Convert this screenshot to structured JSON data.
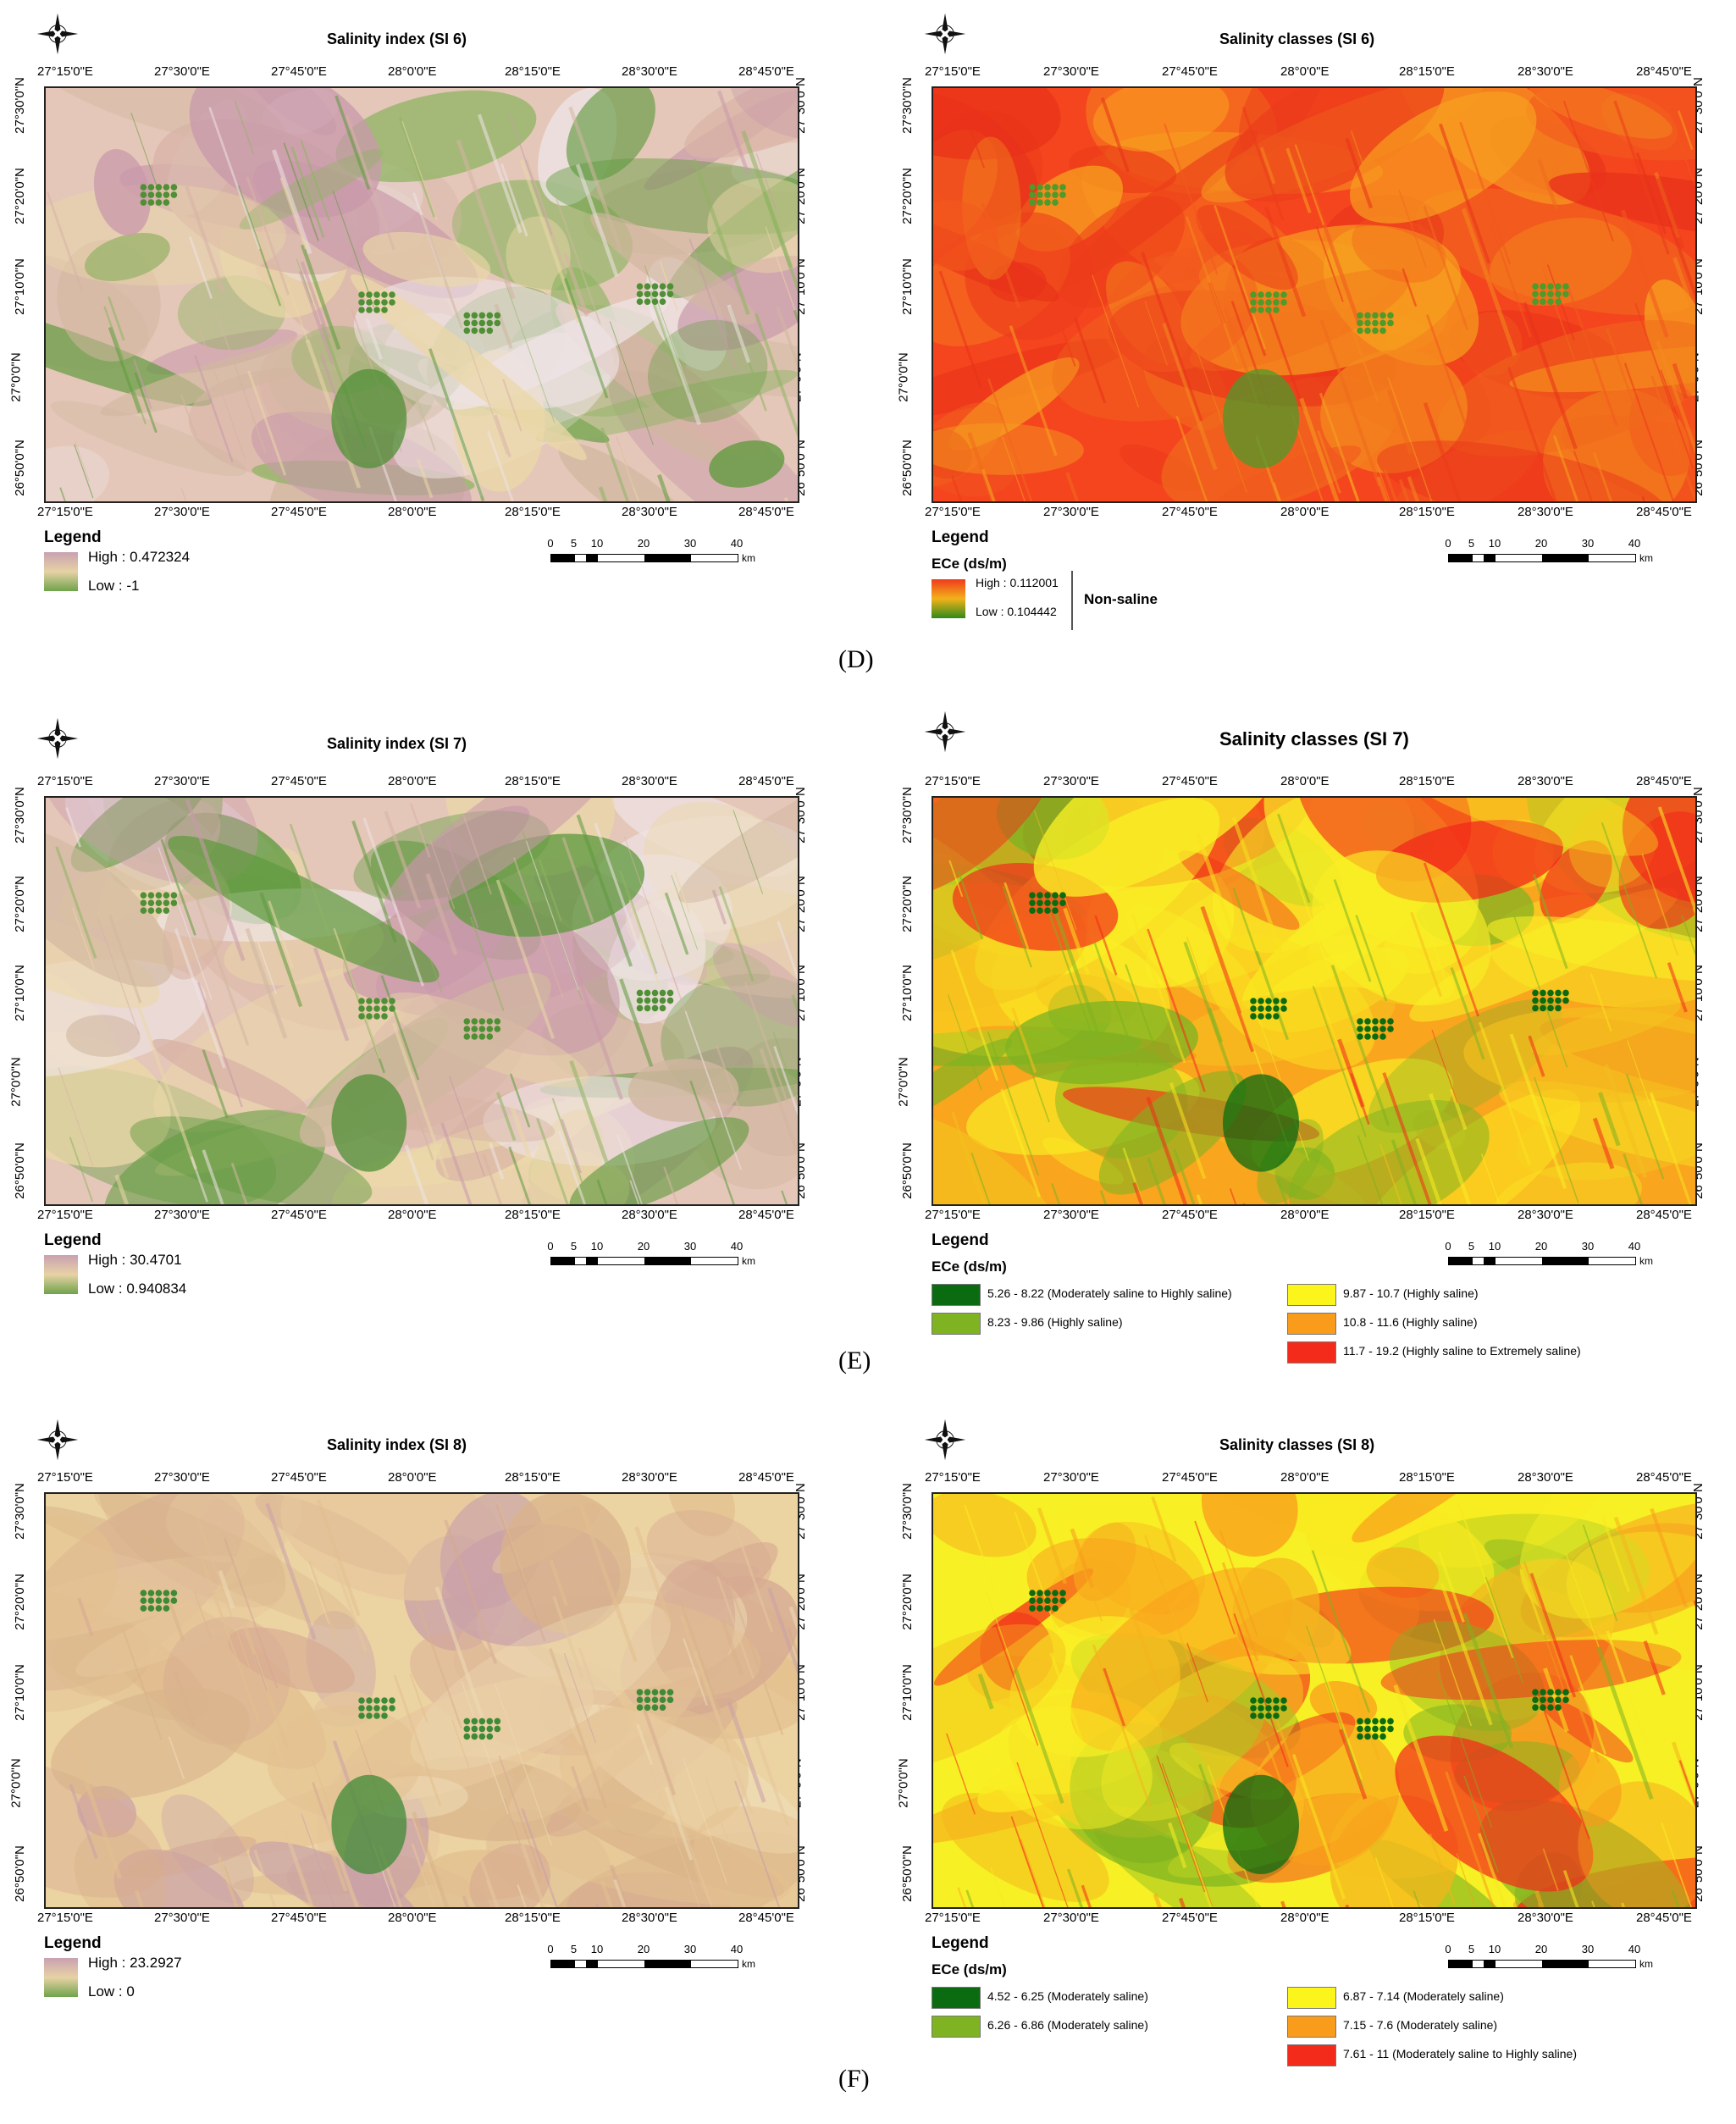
{
  "panels": [
    {
      "id": "d-left",
      "title": "Salinity index (SI 6)",
      "top_ticks": [
        "27°15'0\"E",
        "27°30'0\"E",
        "27°45'0\"E",
        "28°0'0\"E",
        "28°15'0\"E",
        "28°30'0\"E",
        "28°45'0\"E"
      ],
      "bottom_ticks": [
        "27°15'0\"E",
        "27°30'0\"E",
        "27°45'0\"E",
        "28°0'0\"E",
        "28°15'0\"E",
        "28°30'0\"E",
        "28°45'0\"E"
      ],
      "left_ticks": [
        "27°30'0\"N",
        "27°20'0\"N",
        "27°10'0\"N",
        "27°0'0\"N",
        "26°50'0\"N"
      ],
      "right_ticks": [
        "27°30'0\"N",
        "27°20'0\"N",
        "27°10'0\"N",
        "27°0'0\"N",
        "26°50'0\"N"
      ],
      "legend_title": "Legend",
      "high": "High : 0.472324",
      "low": "Low : -1",
      "scale_numbers": [
        "0",
        "5",
        "10",
        "20",
        "30",
        "40"
      ],
      "scale_unit": "km",
      "ramp_colors": [
        "#c9a1b1",
        "#e7d2a5",
        "#6fa34a"
      ],
      "map_palette": "index-pink"
    },
    {
      "id": "d-right",
      "title": "Salinity classes (SI 6)",
      "top_ticks": [
        "27°15'0\"E",
        "27°30'0\"E",
        "27°45'0\"E",
        "28°0'0\"E",
        "28°15'0\"E",
        "28°30'0\"E",
        "28°45'0\"E"
      ],
      "bottom_ticks": [
        "27°15'0\"E",
        "27°30'0\"E",
        "27°45'0\"E",
        "28°0'0\"E",
        "28°15'0\"E",
        "28°30'0\"E",
        "28°45'0\"E"
      ],
      "left_ticks": [
        "27°30'0\"N",
        "27°20'0\"N",
        "27°10'0\"N",
        "27°0'0\"N",
        "26°50'0\"N"
      ],
      "right_ticks": [
        "27°30'0\"N",
        "27°20'0\"N",
        "27°10'0\"N",
        "27°0'0\"N",
        "26°50'0\"N"
      ],
      "legend_title": "Legend",
      "legend_sub": "ECe (ds/m)",
      "high": "High : 0.112001",
      "low": "Low : 0.104442",
      "class_note": "Non-saline",
      "scale_numbers": [
        "0",
        "5",
        "10",
        "20",
        "30",
        "40"
      ],
      "scale_unit": "km",
      "ramp_colors": [
        "#f03a1c",
        "#f2b21a",
        "#2f8a1a"
      ],
      "map_palette": "class-red"
    },
    {
      "id": "e-left",
      "title": "Salinity index (SI 7)",
      "top_ticks": [
        "27°15'0\"E",
        "27°30'0\"E",
        "27°45'0\"E",
        "28°0'0\"E",
        "28°15'0\"E",
        "28°30'0\"E",
        "28°45'0\"E"
      ],
      "bottom_ticks": [
        "27°15'0\"E",
        "27°30'0\"E",
        "27°45'0\"E",
        "28°0'0\"E",
        "28°15'0\"E",
        "28°30'0\"E",
        "28°45'0\"E"
      ],
      "left_ticks": [
        "27°30'0\"N",
        "27°20'0\"N",
        "27°10'0\"N",
        "27°0'0\"N",
        "26°50'0\"N"
      ],
      "right_ticks": [
        "27°30'0\"N",
        "27°20'0\"N",
        "27°10'0\"N",
        "27°0'0\"N",
        "26°50'0\"N"
      ],
      "legend_title": "Legend",
      "high": "High : 30.4701",
      "low": "Low : 0.940834",
      "scale_numbers": [
        "0",
        "5",
        "10",
        "20",
        "30",
        "40"
      ],
      "scale_unit": "km",
      "ramp_colors": [
        "#c9a1b1",
        "#e7d2a5",
        "#6fa34a"
      ],
      "map_palette": "index-pink"
    },
    {
      "id": "e-right",
      "title": "Salinity classes (SI 7)",
      "top_ticks": [
        "27°15'0\"E",
        "27°30'0\"E",
        "27°45'0\"E",
        "28°0'0\"E",
        "28°15'0\"E",
        "28°30'0\"E",
        "28°45'0\"E"
      ],
      "bottom_ticks": [
        "27°15'0\"E",
        "27°30'0\"E",
        "27°45'0\"E",
        "28°0'0\"E",
        "28°15'0\"E",
        "28°30'0\"E",
        "28°45'0\"E"
      ],
      "left_ticks": [
        "27°30'0\"N",
        "27°20'0\"N",
        "27°10'0\"N",
        "27°0'0\"N",
        "26°50'0\"N"
      ],
      "right_ticks": [
        "27°30'0\"N",
        "27°20'0\"N",
        "27°10'0\"N",
        "27°0'0\"N",
        "26°50'0\"N"
      ],
      "legend_title": "Legend",
      "legend_sub": "ECe (ds/m)",
      "classes": [
        {
          "label": "5.26 - 8.22 (Moderately saline to Highly saline)",
          "color": "#0a6b10"
        },
        {
          "label": "8.23 - 9.86 (Highly saline)",
          "color": "#7fb321"
        },
        {
          "label": "9.87 - 10.7 (Highly saline)",
          "color": "#fbf51c"
        },
        {
          "label": "10.8 - 11.6 (Highly saline)",
          "color": "#f99c1c"
        },
        {
          "label": "11.7 - 19.2 (Highly saline to Extremely saline)",
          "color": "#f22b1a"
        }
      ],
      "scale_numbers": [
        "0",
        "5",
        "10",
        "20",
        "30",
        "40"
      ],
      "scale_unit": "km",
      "map_palette": "class-mixed"
    },
    {
      "id": "f-left",
      "title": "Salinity index (SI 8)",
      "top_ticks": [
        "27°15'0\"E",
        "27°30'0\"E",
        "27°45'0\"E",
        "28°0'0\"E",
        "28°15'0\"E",
        "28°30'0\"E",
        "28°45'0\"E"
      ],
      "bottom_ticks": [
        "27°15'0\"E",
        "27°30'0\"E",
        "27°45'0\"E",
        "28°0'0\"E",
        "28°15'0\"E",
        "28°30'0\"E",
        "28°45'0\"E"
      ],
      "left_ticks": [
        "27°30'0\"N",
        "27°20'0\"N",
        "27°10'0\"N",
        "27°0'0\"N",
        "26°50'0\"N"
      ],
      "right_ticks": [
        "27°30'0\"N",
        "27°20'0\"N",
        "27°10'0\"N",
        "27°0'0\"N",
        "26°50'0\"N"
      ],
      "legend_title": "Legend",
      "high": "High : 23.2927",
      "low": "Low : 0",
      "scale_numbers": [
        "0",
        "5",
        "10",
        "20",
        "30",
        "40"
      ],
      "scale_unit": "km",
      "ramp_colors": [
        "#c9a1b1",
        "#e7d2a5",
        "#6fa34a"
      ],
      "map_palette": "index-sand"
    },
    {
      "id": "f-right",
      "title": "Salinity classes (SI 8)",
      "top_ticks": [
        "27°15'0\"E",
        "27°30'0\"E",
        "27°45'0\"E",
        "28°0'0\"E",
        "28°15'0\"E",
        "28°30'0\"E",
        "28°45'0\"E"
      ],
      "bottom_ticks": [
        "27°15'0\"E",
        "27°30'0\"E",
        "27°45'0\"E",
        "28°0'0\"E",
        "28°15'0\"E",
        "28°30'0\"E",
        "28°45'0\"E"
      ],
      "left_ticks": [
        "27°30'0\"N",
        "27°20'0\"N",
        "27°10'0\"N",
        "27°0'0\"N",
        "26°50'0\"N"
      ],
      "right_ticks": [
        "27°30'0\"N",
        "27°20'0\"N",
        "27°10'0\"N",
        "27°0'0\"N",
        "26°50'0\"N"
      ],
      "legend_title": "Legend",
      "legend_sub": "ECe (ds/m)",
      "classes": [
        {
          "label": "4.52 - 6.25 (Moderately saline)",
          "color": "#0a6b10"
        },
        {
          "label": "6.26 - 6.86 (Moderately saline)",
          "color": "#7fb321"
        },
        {
          "label": "6.87 - 7.14 (Moderately saline)",
          "color": "#fbf51c"
        },
        {
          "label": "7.15 - 7.6 (Moderately saline)",
          "color": "#f99c1c"
        },
        {
          "label": "7.61 - 11 (Moderately saline to Highly saline)",
          "color": "#f22b1a"
        }
      ],
      "scale_numbers": [
        "0",
        "5",
        "10",
        "20",
        "30",
        "40"
      ],
      "scale_unit": "km",
      "map_palette": "class-yellow"
    }
  ],
  "figure_labels": [
    "(D)",
    "(E)",
    "(F)"
  ]
}
